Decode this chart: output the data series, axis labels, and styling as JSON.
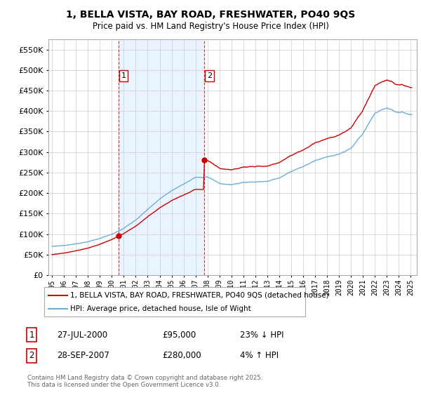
{
  "title_line1": "1, BELLA VISTA, BAY ROAD, FRESHWATER, PO40 9QS",
  "title_line2": "Price paid vs. HM Land Registry's House Price Index (HPI)",
  "legend_line1": "1, BELLA VISTA, BAY ROAD, FRESHWATER, PO40 9QS (detached house)",
  "legend_line2": "HPI: Average price, detached house, Isle of Wight",
  "sale1_date": "27-JUL-2000",
  "sale1_price": "£95,000",
  "sale1_hpi": "23% ↓ HPI",
  "sale2_date": "28-SEP-2007",
  "sale2_price": "£280,000",
  "sale2_hpi": "4% ↑ HPI",
  "footer": "Contains HM Land Registry data © Crown copyright and database right 2025.\nThis data is licensed under the Open Government Licence v3.0.",
  "hpi_color": "#6baed6",
  "price_color": "#cc0000",
  "vline_color": "#cc0000",
  "shade_color": "#ddeeff",
  "background_color": "#ffffff",
  "grid_color": "#cccccc",
  "sale1_year": 2000.58,
  "sale2_year": 2007.75,
  "sale1_price_val": 95000,
  "sale2_price_val": 280000
}
